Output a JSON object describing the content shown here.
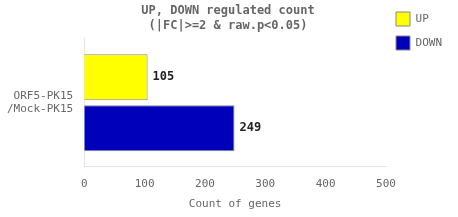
{
  "chart_data": {
    "type": "bar",
    "orientation": "horizontal",
    "title": "UP, DOWN regulated count\n(|FC|>=2 & raw.p<0.05)",
    "xlabel": "Count of genes",
    "categories": [
      "ORF5-PK15\n/Mock-PK15"
    ],
    "series": [
      {
        "name": "UP",
        "color": "#ffff00",
        "values": [
          105
        ]
      },
      {
        "name": "DOWN",
        "color": "#0000bb",
        "values": [
          249
        ]
      }
    ],
    "xlim": [
      0,
      500
    ],
    "xticks": [
      0,
      100,
      200,
      300,
      400,
      500
    ],
    "grid": false,
    "legend": "upper right",
    "data_labels": true
  }
}
